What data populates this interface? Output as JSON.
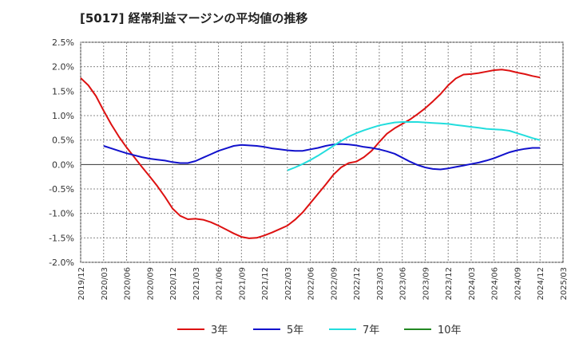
{
  "chart_data": {
    "type": "line",
    "title": "[5017]  経常利益マージンの平均値の推移",
    "xlabel": "",
    "ylabel": "",
    "ylim": [
      -2.0,
      2.5
    ],
    "y_ticks": [
      "2.5%",
      "2.0%",
      "1.5%",
      "1.0%",
      "0.5%",
      "0.0%",
      "-0.5%",
      "-1.0%",
      "-1.5%",
      "-2.0%"
    ],
    "y_tick_values": [
      2.5,
      2.0,
      1.5,
      1.0,
      0.5,
      0.0,
      -0.5,
      -1.0,
      -1.5,
      -2.0
    ],
    "x_ticks": [
      "2019/12",
      "2020/03",
      "2020/06",
      "2020/09",
      "2020/12",
      "2021/03",
      "2021/06",
      "2021/09",
      "2021/12",
      "2022/03",
      "2022/06",
      "2022/09",
      "2022/12",
      "2023/03",
      "2023/06",
      "2023/09",
      "2023/12",
      "2024/03",
      "2024/06",
      "2024/09",
      "2024/12",
      "2025/03"
    ],
    "grid": true,
    "legend_position": "bottom",
    "series": [
      {
        "name": "3年",
        "color": "#dd1111",
        "x": [
          "2019/12",
          "2020/01",
          "2020/02",
          "2020/03",
          "2020/04",
          "2020/05",
          "2020/06",
          "2020/07",
          "2020/08",
          "2020/09",
          "2020/10",
          "2020/11",
          "2020/12",
          "2021/01",
          "2021/02",
          "2021/03",
          "2021/04",
          "2021/05",
          "2021/06",
          "2021/07",
          "2021/08",
          "2021/09",
          "2021/10",
          "2021/11",
          "2021/12",
          "2022/01",
          "2022/02",
          "2022/03",
          "2022/04",
          "2022/05",
          "2022/06",
          "2022/07",
          "2022/08",
          "2022/09",
          "2022/10",
          "2022/11",
          "2022/12",
          "2023/01",
          "2023/02",
          "2023/03",
          "2023/04",
          "2023/05",
          "2023/06",
          "2023/07",
          "2023/08",
          "2023/09",
          "2023/10",
          "2023/11",
          "2023/12",
          "2024/01",
          "2024/02",
          "2024/03",
          "2024/04",
          "2024/05",
          "2024/06",
          "2024/07",
          "2024/08",
          "2024/09",
          "2024/10",
          "2024/11",
          "2024/12"
        ],
        "values": [
          1.77,
          1.62,
          1.4,
          1.1,
          0.82,
          0.57,
          0.35,
          0.15,
          -0.05,
          -0.24,
          -0.44,
          -0.66,
          -0.9,
          -1.05,
          -1.12,
          -1.11,
          -1.13,
          -1.18,
          -1.25,
          -1.33,
          -1.41,
          -1.48,
          -1.51,
          -1.5,
          -1.45,
          -1.39,
          -1.32,
          -1.25,
          -1.13,
          -0.98,
          -0.79,
          -0.6,
          -0.41,
          -0.21,
          -0.06,
          0.03,
          0.06,
          0.15,
          0.28,
          0.46,
          0.63,
          0.74,
          0.83,
          0.92,
          1.03,
          1.15,
          1.29,
          1.44,
          1.62,
          1.76,
          1.84,
          1.85,
          1.87,
          1.9,
          1.93,
          1.94,
          1.92,
          1.88,
          1.85,
          1.81,
          1.78
        ]
      },
      {
        "name": "5年",
        "color": "#1111cc",
        "x": [
          "2020/03",
          "2020/04",
          "2020/05",
          "2020/06",
          "2020/07",
          "2020/08",
          "2020/09",
          "2020/10",
          "2020/11",
          "2020/12",
          "2021/01",
          "2021/02",
          "2021/03",
          "2021/04",
          "2021/05",
          "2021/06",
          "2021/07",
          "2021/08",
          "2021/09",
          "2021/10",
          "2021/11",
          "2021/12",
          "2022/01",
          "2022/02",
          "2022/03",
          "2022/04",
          "2022/05",
          "2022/06",
          "2022/07",
          "2022/08",
          "2022/09",
          "2022/10",
          "2022/11",
          "2022/12",
          "2023/01",
          "2023/02",
          "2023/03",
          "2023/04",
          "2023/05",
          "2023/06",
          "2023/07",
          "2023/08",
          "2023/09",
          "2023/10",
          "2023/11",
          "2023/12",
          "2024/01",
          "2024/02",
          "2024/03",
          "2024/04",
          "2024/05",
          "2024/06",
          "2024/07",
          "2024/08",
          "2024/09",
          "2024/10",
          "2024/11",
          "2024/12"
        ],
        "values": [
          0.38,
          0.33,
          0.28,
          0.23,
          0.19,
          0.15,
          0.12,
          0.1,
          0.08,
          0.05,
          0.03,
          0.03,
          0.07,
          0.14,
          0.21,
          0.28,
          0.33,
          0.38,
          0.4,
          0.39,
          0.38,
          0.36,
          0.33,
          0.31,
          0.29,
          0.28,
          0.28,
          0.31,
          0.34,
          0.38,
          0.41,
          0.42,
          0.41,
          0.39,
          0.36,
          0.34,
          0.31,
          0.27,
          0.22,
          0.14,
          0.06,
          -0.01,
          -0.06,
          -0.09,
          -0.1,
          -0.08,
          -0.05,
          -0.02,
          0.01,
          0.04,
          0.08,
          0.13,
          0.19,
          0.25,
          0.29,
          0.32,
          0.34,
          0.34
        ]
      },
      {
        "name": "7年",
        "color": "#22dddd",
        "x": [
          "2022/03",
          "2022/04",
          "2022/05",
          "2022/06",
          "2022/07",
          "2022/08",
          "2022/09",
          "2022/10",
          "2022/11",
          "2022/12",
          "2023/01",
          "2023/02",
          "2023/03",
          "2023/04",
          "2023/05",
          "2023/06",
          "2023/07",
          "2023/08",
          "2023/09",
          "2023/10",
          "2023/11",
          "2023/12",
          "2024/01",
          "2024/02",
          "2024/03",
          "2024/04",
          "2024/05",
          "2024/06",
          "2024/07",
          "2024/08",
          "2024/09",
          "2024/10",
          "2024/11",
          "2024/12"
        ],
        "values": [
          -0.12,
          -0.06,
          0.01,
          0.09,
          0.18,
          0.28,
          0.38,
          0.48,
          0.57,
          0.64,
          0.7,
          0.75,
          0.8,
          0.83,
          0.86,
          0.87,
          0.87,
          0.87,
          0.86,
          0.85,
          0.84,
          0.83,
          0.81,
          0.79,
          0.77,
          0.75,
          0.73,
          0.72,
          0.71,
          0.69,
          0.64,
          0.59,
          0.54,
          0.5
        ]
      },
      {
        "name": "10年",
        "color": "#228822",
        "x": [],
        "values": []
      }
    ]
  }
}
